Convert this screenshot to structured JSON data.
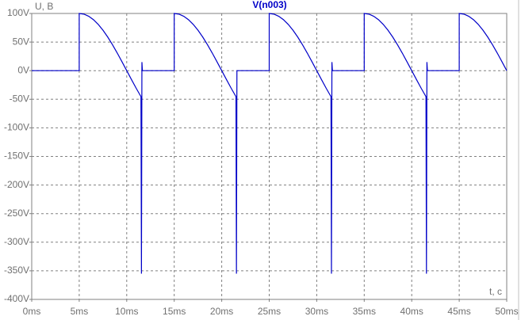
{
  "chart_data": {
    "type": "line",
    "y_label": "U, B",
    "x_label": "t, c",
    "x": [
      0,
      5,
      5,
      5.5,
      6,
      6.5,
      7,
      7.5,
      8,
      8.5,
      9,
      9.5,
      10,
      10.5,
      11,
      11.5,
      11.55,
      11.6,
      11.65,
      15,
      15,
      15.5,
      16,
      16.5,
      17,
      17.5,
      18,
      18.5,
      19,
      19.5,
      20,
      20.5,
      21,
      21.5,
      21.55,
      21.6,
      25,
      25,
      25.5,
      26,
      26.5,
      27,
      27.5,
      28,
      28.5,
      29,
      29.5,
      30,
      30.5,
      31,
      31.5,
      31.55,
      31.6,
      31.65,
      35,
      35,
      35.5,
      36,
      36.5,
      37,
      37.5,
      38,
      38.5,
      39,
      39.5,
      40,
      40.5,
      41,
      41.5,
      41.55,
      41.6,
      41.65,
      45,
      45,
      45.5,
      46,
      46.5,
      47,
      47.5,
      48,
      48.5,
      49,
      49.5,
      50
    ],
    "series": [
      {
        "name": "V(n003)",
        "color": "#0000c8",
        "values": [
          0,
          0,
          100,
          98.8,
          95.1,
          89.1,
          80.9,
          70.7,
          58.8,
          45.4,
          30.9,
          15.6,
          0,
          -15.6,
          -30.9,
          -45.4,
          -355,
          15,
          0,
          0,
          100,
          98.8,
          95.1,
          89.1,
          80.9,
          70.7,
          58.8,
          45.4,
          30.9,
          15.6,
          0,
          -15.6,
          -30.9,
          -45.4,
          -355,
          0,
          0,
          100,
          98.8,
          95.1,
          89.1,
          80.9,
          70.7,
          58.8,
          45.4,
          30.9,
          15.6,
          0,
          -15.6,
          -30.9,
          -45.4,
          -355,
          15,
          0,
          0,
          100,
          98.8,
          95.1,
          89.1,
          80.9,
          70.7,
          58.8,
          45.4,
          30.9,
          15.6,
          0,
          -15.6,
          -30.9,
          -45.4,
          -355,
          15,
          0,
          0,
          100,
          98.8,
          95.1,
          89.1,
          80.9,
          70.7,
          58.8,
          45.4,
          30.9,
          15.6,
          0
        ]
      }
    ],
    "xlim": [
      0,
      50
    ],
    "ylim": [
      -400,
      100
    ],
    "xticks": [
      {
        "value": 0,
        "label": "0ms"
      },
      {
        "value": 5,
        "label": "5ms"
      },
      {
        "value": 10,
        "label": "10ms"
      },
      {
        "value": 15,
        "label": "15ms"
      },
      {
        "value": 20,
        "label": "20ms"
      },
      {
        "value": 25,
        "label": "25ms"
      },
      {
        "value": 30,
        "label": "30ms"
      },
      {
        "value": 35,
        "label": "35ms"
      },
      {
        "value": 40,
        "label": "40ms"
      },
      {
        "value": 45,
        "label": "45ms"
      },
      {
        "value": 50,
        "label": "50ms"
      }
    ],
    "yticks": [
      {
        "value": 100,
        "label": "100V"
      },
      {
        "value": 50,
        "label": "50V"
      },
      {
        "value": 0,
        "label": "0V"
      },
      {
        "value": -50,
        "label": "-50V"
      },
      {
        "value": -100,
        "label": "-100V"
      },
      {
        "value": -150,
        "label": "-150V"
      },
      {
        "value": -200,
        "label": "-200V"
      },
      {
        "value": -250,
        "label": "-250V"
      },
      {
        "value": -300,
        "label": "-300V"
      },
      {
        "value": -350,
        "label": "-350V"
      },
      {
        "value": -400,
        "label": "-400V"
      }
    ],
    "grid": true
  }
}
